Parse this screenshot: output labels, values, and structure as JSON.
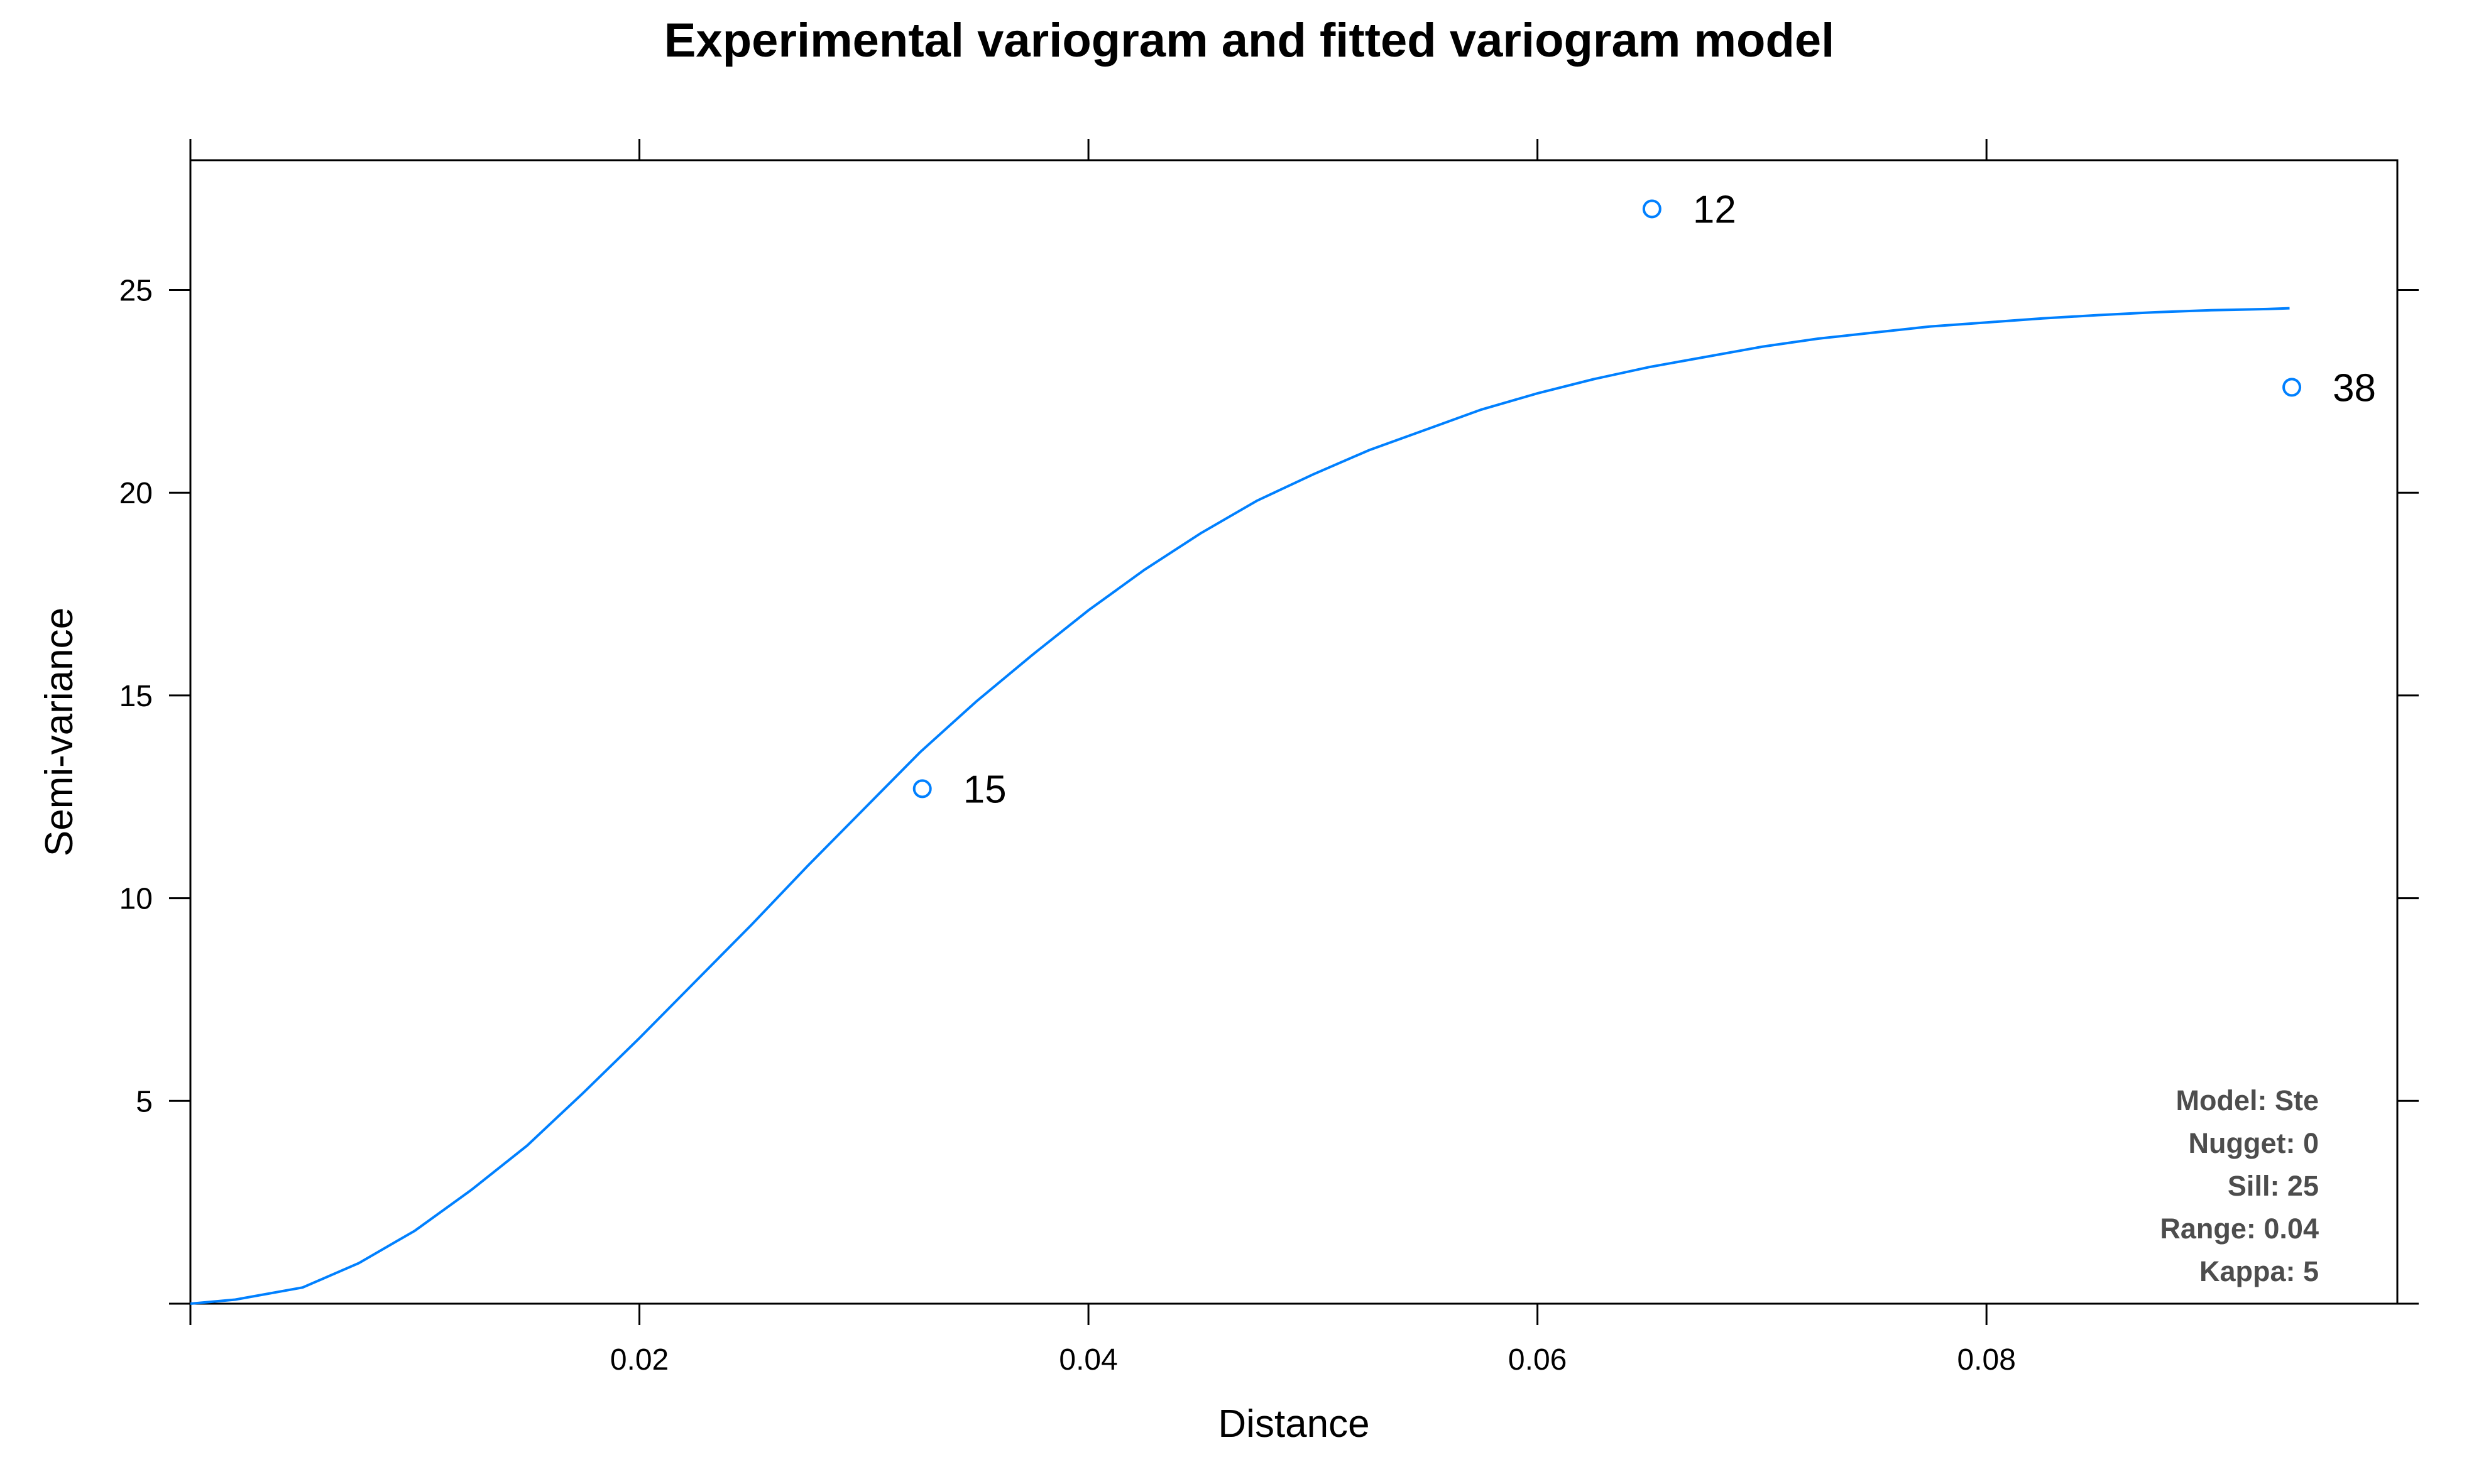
{
  "chart_data": {
    "type": "scatter",
    "title": "Experimental variogram and fitted variogram model",
    "xlabel": "Distance",
    "ylabel": "Semi-variance",
    "xlim": [
      0.0,
      0.0983
    ],
    "ylim": [
      0.0,
      28.2
    ],
    "x_ticks": [
      0.02,
      0.04,
      0.06,
      0.08
    ],
    "x_tick_labels": [
      "0.02",
      "0.04",
      "0.06",
      "0.08"
    ],
    "y_ticks": [
      5,
      10,
      15,
      20,
      25
    ],
    "y_tick_labels": [
      "5",
      "10",
      "15",
      "20",
      "25"
    ],
    "grid": false,
    "series": [
      {
        "type": "scatter",
        "x": [
          0.0326,
          0.0651,
          0.0936
        ],
        "y": [
          12.7,
          27.0,
          22.6
        ],
        "labels": [
          "15",
          "12",
          "38"
        ],
        "color": "#0080ff"
      },
      {
        "type": "line",
        "model": "Ste",
        "nugget": 0,
        "sill": 25,
        "range": 0.04,
        "kappa": 5,
        "x": [
          0.0,
          0.002,
          0.005,
          0.0075,
          0.01,
          0.0125,
          0.015,
          0.0175,
          0.02,
          0.0225,
          0.025,
          0.0275,
          0.03,
          0.0325,
          0.035,
          0.0375,
          0.04,
          0.0425,
          0.045,
          0.0475,
          0.05,
          0.0525,
          0.055,
          0.0575,
          0.06,
          0.0625,
          0.065,
          0.0675,
          0.07,
          0.0725,
          0.075,
          0.0775,
          0.08,
          0.0825,
          0.085,
          0.0875,
          0.09,
          0.0925,
          0.0935
        ],
        "y": [
          0.0,
          0.1,
          0.4,
          1.0,
          1.8,
          2.8,
          3.9,
          5.2,
          6.55,
          7.95,
          9.35,
          10.8,
          12.2,
          13.6,
          14.85,
          16.0,
          17.1,
          18.1,
          19.0,
          19.8,
          20.45,
          21.05,
          21.55,
          22.05,
          22.45,
          22.8,
          23.1,
          23.35,
          23.6,
          23.8,
          23.95,
          24.1,
          24.2,
          24.3,
          24.38,
          24.45,
          24.5,
          24.53,
          24.55
        ],
        "color": "#0080ff"
      }
    ],
    "annotations": [
      "Model: Ste",
      "Nugget: 0",
      "Sill: 25",
      "Range: 0.04",
      "Kappa: 5"
    ]
  }
}
